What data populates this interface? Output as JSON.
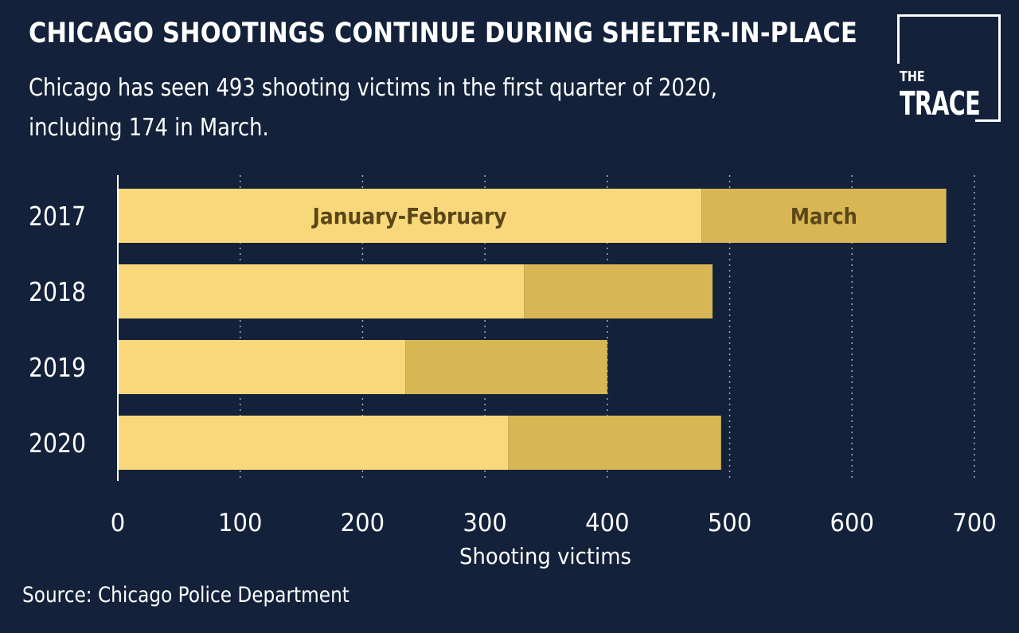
{
  "header": {
    "title": "CHICAGO SHOOTINGS CONTINUE DURING SHELTER-IN-PLACE",
    "subtitle_line1": "Chicago has seen 493 shooting victims in the first quarter of 2020,",
    "subtitle_line2": "including 174 in March."
  },
  "logo": {
    "line1": "THE",
    "line2": "TRACE"
  },
  "footer": {
    "source": "Source: Chicago Police Department"
  },
  "colors": {
    "background": "#13223a",
    "jan_feb": "#f8d87a",
    "march": "#d8b654",
    "bar_label": "#5a4718",
    "text": "#ffffff",
    "grid": "#a8b0bc"
  },
  "chart_data": {
    "type": "bar",
    "orientation": "horizontal",
    "stacked": true,
    "categories": [
      "2017",
      "2018",
      "2019",
      "2020"
    ],
    "series": [
      {
        "name": "January-February",
        "values": [
          477,
          332,
          235,
          319
        ]
      },
      {
        "name": "March",
        "values": [
          200,
          154,
          165,
          174
        ]
      }
    ],
    "xlabel": "Shooting victims",
    "ylabel": "",
    "xlim": [
      0,
      700
    ],
    "xticks": [
      "0",
      "100",
      "200",
      "300",
      "400",
      "500",
      "600",
      "700"
    ],
    "grid": true,
    "legend": "inline labels on first bar"
  }
}
